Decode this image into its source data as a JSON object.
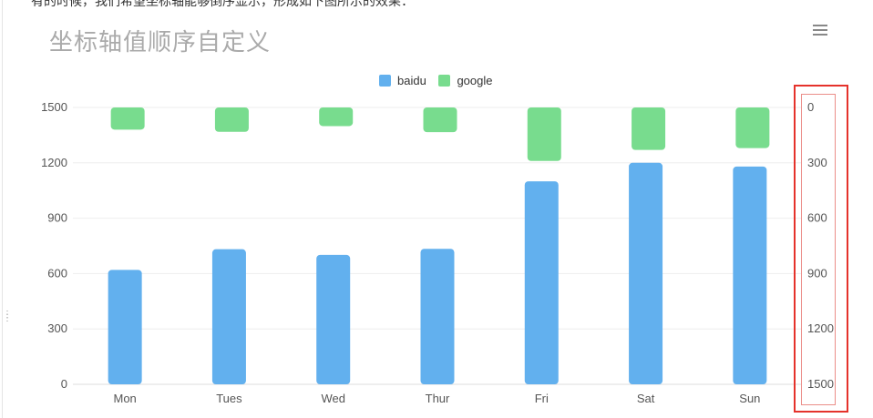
{
  "page": {
    "top_text": "有的时候，我们希望坐标轴能够倒序显示，形成如下图所示的效果："
  },
  "chart_title": "坐标轴值顺序自定义",
  "toolbox": {
    "icon": "menu-icon"
  },
  "colors": {
    "baidu": "#62b0ee",
    "google": "#78dc8e",
    "highlight": "#e5322b",
    "axis_text": "#555555",
    "grid": "#eeeeee"
  },
  "chart_data": {
    "type": "bar",
    "title": "坐标轴值顺序自定义",
    "legend": {
      "position": "top-center",
      "items": [
        "baidu",
        "google"
      ]
    },
    "categories": [
      "Mon",
      "Tues",
      "Wed",
      "Thur",
      "Fri",
      "Sat",
      "Sun"
    ],
    "series": [
      {
        "name": "baidu",
        "axis": "left",
        "values": [
          620,
          732,
          701,
          734,
          1100,
          1200,
          1180
        ]
      },
      {
        "name": "google",
        "axis": "right",
        "values": [
          120,
          132,
          101,
          134,
          290,
          230,
          220
        ]
      }
    ],
    "y_left": {
      "ticks": [
        "1500",
        "1200",
        "900",
        "600",
        "300",
        "0"
      ],
      "ylim": [
        0,
        1500
      ],
      "inverse": false
    },
    "y_right": {
      "ticks": [
        "0",
        "300",
        "600",
        "900",
        "1200",
        "1500"
      ],
      "ylim": [
        0,
        1500
      ],
      "inverse": true
    },
    "grid": true,
    "annotation": "red box highlighting inverted right axis"
  }
}
